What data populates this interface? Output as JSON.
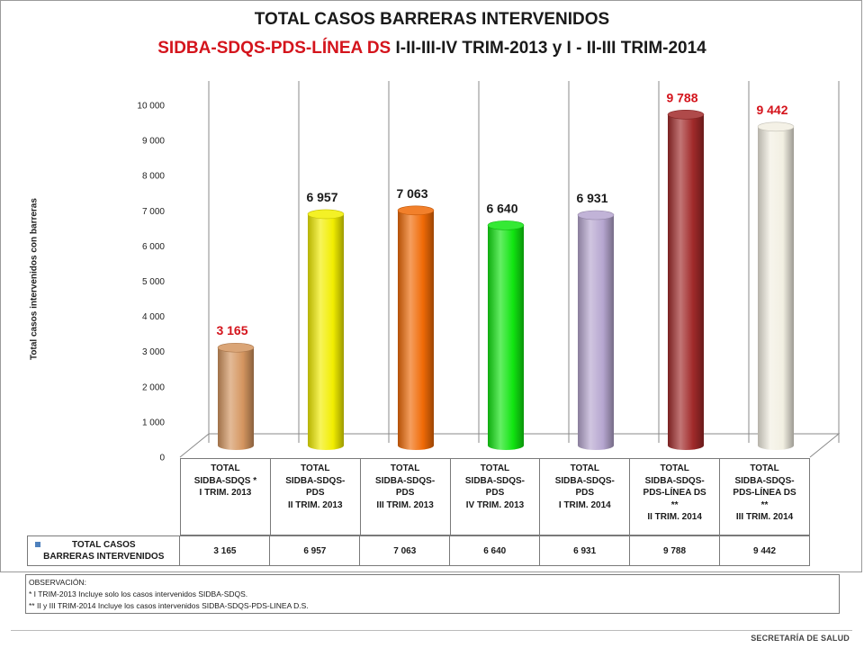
{
  "title": {
    "line1": "TOTAL CASOS BARRERAS INTERVENIDOS",
    "line2_red": "SIDBA-SDQS-PDS-LÍNEA DS",
    "line2_dark": " I-II-III-IV TRIM-2013 y I - II-III TRIM-2014"
  },
  "chart_data": {
    "type": "bar",
    "title": "TOTAL CASOS BARRERAS INTERVENIDOS",
    "subtitle": "SIDBA-SDQS-PDS-LÍNEA DS I-II-III-IV TRIM-2013 y I - II-III TRIM-2014",
    "ylabel": "Total casos intervenidos con barreras",
    "xlabel": "",
    "ylim": [
      0,
      10000
    ],
    "yticks": [
      "0",
      "1 000",
      "2 000",
      "3 000",
      "4 000",
      "5 000",
      "6 000",
      "7 000",
      "8 000",
      "9 000",
      "10 000"
    ],
    "categories": [
      "TOTAL\nSIDBA-SDQS *\nI TRIM. 2013",
      "TOTAL\nSIDBA-SDQS-\nPDS\nII TRIM. 2013",
      "TOTAL\nSIDBA-SDQS-\nPDS\nIII TRIM. 2013",
      "TOTAL\nSIDBA-SDQS-\nPDS\nIV TRIM. 2013",
      "TOTAL\nSIDBA-SDQS-\nPDS\nI TRIM. 2014",
      "TOTAL\nSIDBA-SDQS-\nPDS-LÍNEA DS\n**\nII TRIM. 2014",
      "TOTAL\nSIDBA-SDQS-\nPDS-LÍNEA DS\n**\nIII TRIM. 2014"
    ],
    "series": [
      {
        "name": "TOTAL CASOS BARRERAS INTERVENIDOS",
        "values": [
          3165,
          6957,
          7063,
          6640,
          6931,
          9788,
          9442
        ]
      }
    ],
    "value_labels": [
      "3 165",
      "6 957",
      "7 063",
      "6 640",
      "6 931",
      "9 788",
      "9 442"
    ],
    "bar_colors": [
      "#d4955f",
      "#f2ee00",
      "#f06a06",
      "#11e511",
      "#b6a6d0",
      "#a12a2a",
      "#f2efe2"
    ],
    "label_colors": [
      "#d4141c",
      "#1a1a1a",
      "#1a1a1a",
      "#1a1a1a",
      "#1a1a1a",
      "#d4141c",
      "#d4141c"
    ],
    "grid": "vertical separators",
    "legend": "data table below chart"
  },
  "table": {
    "legend_label": "TOTAL CASOS\nBARRERAS INTERVENIDOS",
    "legend_color": "#4f81bd",
    "values": [
      "3 165",
      "6 957",
      "7 063",
      "6 640",
      "6 931",
      "9 788",
      "9 442"
    ]
  },
  "observation": {
    "heading": "OBSERVACIÓN:",
    "note1": "* I TRIM-2013 Incluye solo los casos intervenidos  SIDBA-SDQS.",
    "note2": "** II y III TRIM-2014 Incluye los casos intervenidos  SIDBA-SDQS-PDS-LINEA D.S."
  },
  "footer": "SECRETARÍA DE SALUD"
}
